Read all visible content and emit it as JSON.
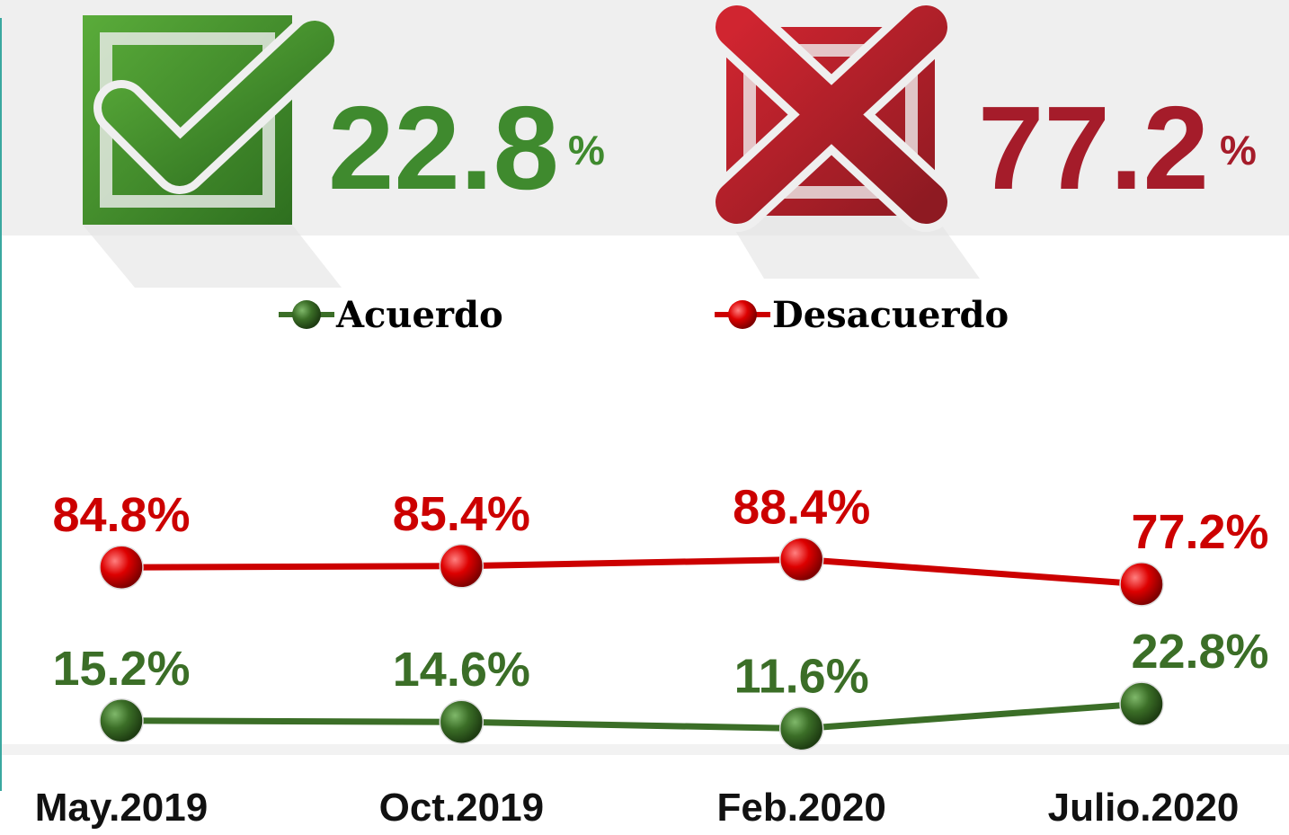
{
  "header": {
    "agree": {
      "number": "22.8",
      "unit": "%"
    },
    "disagree": {
      "number": "77.2",
      "unit": "%"
    }
  },
  "chart_data": {
    "type": "line",
    "categories": [
      "May.2019",
      "Oct.2019",
      "Feb.2020",
      "Julio.2020"
    ],
    "ylim": [
      0,
      100
    ],
    "series": [
      {
        "name": "Acuerdo",
        "color": "#3b6e27",
        "values": [
          15.2,
          14.6,
          11.6,
          22.8
        ],
        "value_labels": [
          "15.2%",
          "14.6%",
          "11.6%",
          "22.8%"
        ]
      },
      {
        "name": "Desacuerdo",
        "color": "#cc0000",
        "values": [
          84.8,
          85.4,
          88.4,
          77.2
        ],
        "value_labels": [
          "84.8%",
          "85.4%",
          "88.4%",
          "77.2%"
        ]
      }
    ]
  }
}
